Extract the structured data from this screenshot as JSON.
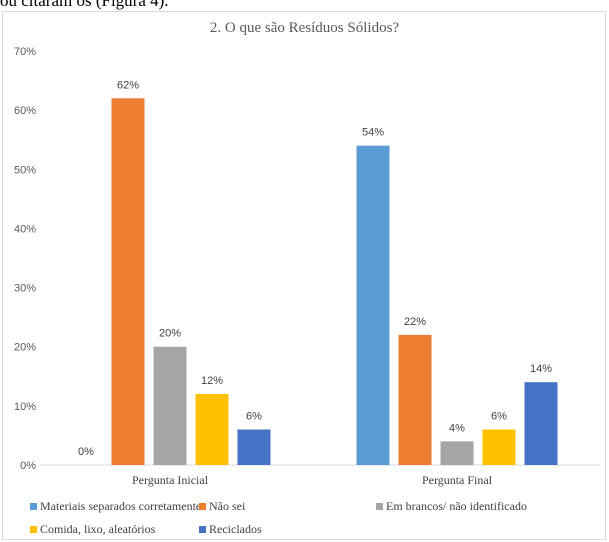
{
  "page_text": {
    "top_line": "ou citaram os (Figura 4)."
  },
  "chart_data": {
    "type": "bar",
    "title": "2. O que são Resíduos Sólidos?",
    "categories": [
      "Pergunta Inicial",
      "Pergunta Final"
    ],
    "series": [
      {
        "name": "Materiais separados corretamente",
        "color": "#5b9bd5",
        "values": [
          0,
          54
        ],
        "labels": [
          "0%",
          "54%"
        ]
      },
      {
        "name": "Não sei",
        "color": "#ed7d31",
        "values": [
          62,
          22
        ],
        "labels": [
          "62%",
          "22%"
        ]
      },
      {
        "name": "Em brancos/ não identificado",
        "color": "#a5a5a5",
        "values": [
          20,
          4
        ],
        "labels": [
          "20%",
          "4%"
        ]
      },
      {
        "name": "Comida, lixo, aleatórios",
        "color": "#ffc000",
        "values": [
          12,
          6
        ],
        "labels": [
          "12%",
          "6%"
        ]
      },
      {
        "name": "Reciclados",
        "color": "#4472c4",
        "values": [
          6,
          14
        ],
        "labels": [
          "6%",
          "14%"
        ]
      }
    ],
    "y_ticks": [
      "0%",
      "10%",
      "20%",
      "30%",
      "40%",
      "50%",
      "60%",
      "70%"
    ],
    "ylim": [
      0,
      70
    ],
    "grid": false,
    "legend_position": "bottom"
  }
}
